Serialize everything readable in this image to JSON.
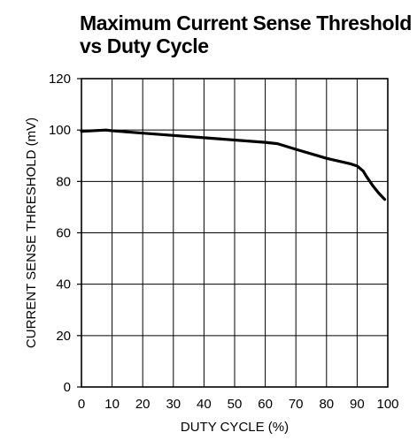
{
  "chart_data": {
    "type": "line",
    "title": [
      "Maximum Current Sense Threshold",
      "vs Duty Cycle"
    ],
    "xlabel": "DUTY CYCLE (%)",
    "ylabel": "CURRENT SENSE THRESHOLD (mV)",
    "xlim": [
      0,
      100
    ],
    "ylim": [
      0,
      120
    ],
    "xticks": [
      0,
      10,
      20,
      30,
      40,
      50,
      60,
      70,
      80,
      90,
      100
    ],
    "yticks": [
      0,
      20,
      40,
      60,
      80,
      100,
      120
    ],
    "grid": true,
    "series": [
      {
        "x": [
          0,
          8,
          10,
          20,
          30,
          40,
          50,
          60,
          64,
          70,
          80,
          88,
          90,
          92,
          93,
          95,
          97,
          99
        ],
        "y": [
          99.5,
          100,
          99.7,
          98.8,
          97.9,
          97,
          96.1,
          95.2,
          94.7,
          92.5,
          89,
          86.8,
          86,
          84,
          82,
          78.5,
          75.5,
          73
        ]
      }
    ]
  },
  "colors": {
    "line": "#000000",
    "grid": "#000000",
    "background": "#ffffff"
  }
}
